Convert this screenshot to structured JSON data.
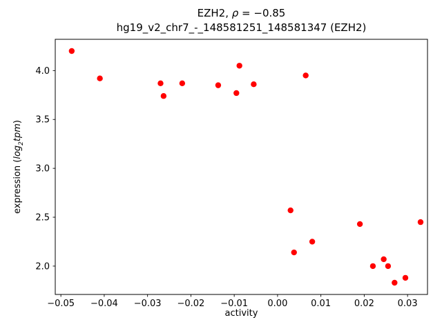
{
  "title": {
    "line1_prefix": "EZH2, ",
    "line1_rho": "ρ",
    "line1_eq": " = −0.85",
    "line2": "hg19_v2_chr7_-_148581251_148581347 (EZH2)"
  },
  "ylabel_parts": {
    "prefix": "expression (",
    "log": "log",
    "sub": "2",
    "tpm": "tpm",
    "suffix": ")"
  },
  "chart_data": {
    "type": "scatter",
    "title": "EZH2, ρ = −0.85",
    "subtitle": "hg19_v2_chr7_-_148581251_148581347 (EZH2)",
    "xlabel": "activity",
    "ylabel": "expression (log2 tpm)",
    "marker_color": "#ff0000",
    "marker_radius": 4.2,
    "grid": false,
    "legend": "none",
    "xlim": [
      -0.0513,
      0.0346
    ],
    "ylim": [
      1.71,
      4.32
    ],
    "x_ticks": [
      -0.05,
      -0.04,
      -0.03,
      -0.02,
      -0.01,
      0.0,
      0.01,
      0.02,
      0.03
    ],
    "x_tick_labels": [
      "−0.05",
      "−0.04",
      "−0.03",
      "−0.02",
      "−0.01",
      "0.00",
      "0.01",
      "0.02",
      "0.03"
    ],
    "y_ticks": [
      2.0,
      2.5,
      3.0,
      3.5,
      4.0
    ],
    "y_tick_labels": [
      "2.0",
      "2.5",
      "3.0",
      "3.5",
      "4.0"
    ],
    "points": [
      [
        -0.0475,
        4.2
      ],
      [
        -0.041,
        3.92
      ],
      [
        -0.027,
        3.87
      ],
      [
        -0.0263,
        3.74
      ],
      [
        -0.022,
        3.87
      ],
      [
        -0.0137,
        3.85
      ],
      [
        -0.0095,
        3.77
      ],
      [
        -0.0088,
        4.05
      ],
      [
        -0.0055,
        3.86
      ],
      [
        0.0065,
        3.95
      ],
      [
        0.003,
        2.57
      ],
      [
        0.0038,
        2.14
      ],
      [
        0.008,
        2.25
      ],
      [
        0.019,
        2.43
      ],
      [
        0.022,
        2.0
      ],
      [
        0.0245,
        2.07
      ],
      [
        0.0255,
        2.0
      ],
      [
        0.027,
        1.83
      ],
      [
        0.0295,
        1.88
      ],
      [
        0.033,
        2.45
      ]
    ]
  }
}
